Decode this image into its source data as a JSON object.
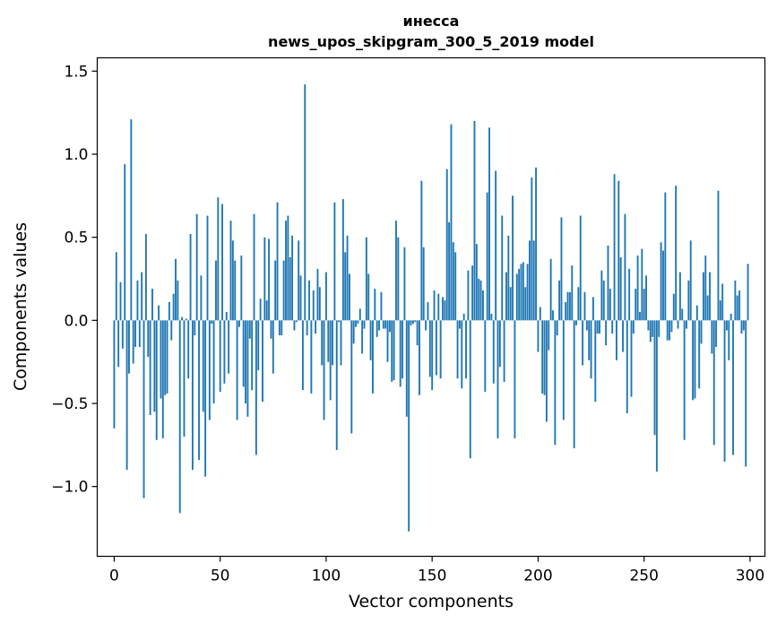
{
  "chart_data": {
    "type": "bar",
    "title": "инесса",
    "subtitle": "news_upos_skipgram_300_5_2019 model",
    "xlabel": "Vector components",
    "ylabel": "Components values",
    "xlim": [
      -8,
      307
    ],
    "ylim": [
      -1.42,
      1.58
    ],
    "xticks": [
      0,
      50,
      100,
      150,
      200,
      250,
      300
    ],
    "yticks": [
      -1.0,
      -0.5,
      0.0,
      0.5,
      1.0,
      1.5
    ],
    "xtick_labels": [
      "0",
      "50",
      "100",
      "150",
      "200",
      "250",
      "300"
    ],
    "ytick_labels": [
      "−1.0",
      "−0.5",
      "0.0",
      "0.5",
      "1.0",
      "1.5"
    ],
    "bar_color": "#1f77b4",
    "grid": false,
    "values": [
      -0.65,
      0.41,
      -0.28,
      0.23,
      -0.17,
      0.94,
      -0.9,
      -0.32,
      1.21,
      -0.26,
      -0.16,
      0.24,
      -0.16,
      0.29,
      -1.07,
      0.52,
      -0.22,
      -0.57,
      0.19,
      -0.55,
      -0.72,
      0.09,
      -0.47,
      -0.71,
      -0.45,
      -0.44,
      0.11,
      -0.12,
      0.16,
      0.37,
      0.24,
      -1.16,
      0.02,
      -0.7,
      0.01,
      -0.35,
      0.52,
      -0.9,
      -0.09,
      0.64,
      -0.84,
      0.27,
      -0.55,
      -0.94,
      0.63,
      -0.6,
      -0.02,
      -0.5,
      0.36,
      0.74,
      -0.43,
      0.7,
      -0.38,
      0.05,
      -0.32,
      0.6,
      0.48,
      0.36,
      -0.6,
      -0.04,
      0.39,
      -0.4,
      -0.5,
      -0.58,
      -0.11,
      -0.42,
      0.64,
      -0.81,
      -0.3,
      0.13,
      -0.49,
      0.5,
      0.12,
      0.49,
      -0.11,
      -0.32,
      0.36,
      0.71,
      -0.09,
      -0.09,
      0.36,
      0.6,
      0.63,
      0.38,
      0.51,
      -0.06,
      -0.01,
      0.48,
      0.27,
      -0.42,
      1.42,
      -0.09,
      0.24,
      -0.44,
      0.18,
      -0.08,
      0.31,
      0.2,
      -0.27,
      -0.6,
      0.29,
      -0.25,
      -0.48,
      -0.27,
      0.71,
      -0.78,
      -0.01,
      -0.27,
      0.73,
      0.41,
      0.51,
      0.28,
      -0.68,
      -0.14,
      -0.04,
      -0.02,
      0.07,
      -0.2,
      -0.05,
      0.5,
      0.28,
      -0.24,
      -0.44,
      0.19,
      -0.1,
      -0.06,
      0.17,
      -0.05,
      -0.05,
      -0.25,
      -0.07,
      -0.37,
      -0.36,
      0.6,
      0.5,
      -0.4,
      -0.35,
      0.44,
      -0.58,
      -1.27,
      -0.03,
      -0.02,
      -0.01,
      -0.15,
      -0.45,
      0.84,
      0.44,
      -0.06,
      0.11,
      -0.34,
      -0.42,
      0.18,
      -0.33,
      0.16,
      -0.35,
      0.14,
      0.12,
      0.91,
      0.59,
      1.18,
      0.47,
      0.41,
      -0.35,
      -0.05,
      -0.41,
      0.04,
      -0.35,
      0.3,
      -0.83,
      0.33,
      1.2,
      0.46,
      0.25,
      0.24,
      0.18,
      -0.43,
      0.77,
      1.16,
      0.04,
      -0.38,
      0.9,
      -0.71,
      -0.28,
      0.63,
      -0.37,
      0.29,
      0.51,
      0.2,
      0.75,
      -0.71,
      0.28,
      0.31,
      0.34,
      0.35,
      0.2,
      0.34,
      0.48,
      0.86,
      0.48,
      0.92,
      -0.19,
      0.08,
      -0.44,
      -0.45,
      -0.61,
      -0.18,
      0.37,
      0.06,
      -0.75,
      -0.09,
      0.24,
      0.62,
      -0.6,
      0.11,
      0.17,
      0.17,
      0.33,
      -0.77,
      -0.03,
      0.2,
      0.63,
      -0.27,
      0.17,
      -0.06,
      -0.24,
      -0.35,
      0.14,
      -0.49,
      -0.08,
      -0.08,
      0.3,
      0.24,
      -0.15,
      0.45,
      0.19,
      -0.08,
      0.88,
      -0.24,
      0.84,
      0.38,
      -0.19,
      0.64,
      -0.56,
      0.31,
      -0.46,
      -0.08,
      0.19,
      0.39,
      0.05,
      0.43,
      0.19,
      0.27,
      -0.06,
      -0.13,
      -0.1,
      -0.69,
      -0.91,
      -0.1,
      0.47,
      0.42,
      0.77,
      -0.12,
      -0.12,
      -0.07,
      0.16,
      0.81,
      -0.05,
      0.29,
      0.07,
      -0.72,
      -0.05,
      0.24,
      0.48,
      -0.48,
      -0.47,
      0.09,
      -0.41,
      -0.14,
      0.29,
      0.39,
      0.15,
      0.29,
      -0.2,
      -0.75,
      -0.16,
      0.78,
      0.12,
      0.22,
      -0.85,
      -0.06,
      -0.24,
      0.04,
      -0.81,
      0.24,
      0.15,
      0.18,
      -0.08,
      -0.06,
      -0.88,
      0.34
    ]
  }
}
